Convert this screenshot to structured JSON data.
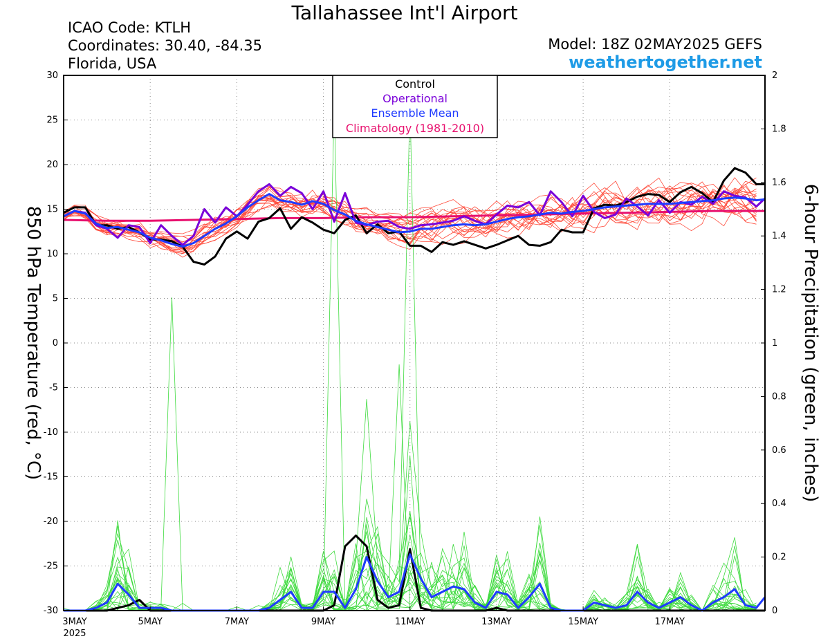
{
  "header": {
    "title": "Tallahassee Int'l Airport",
    "icao": "ICAO Code: KTLH",
    "coordinates": "Coordinates: 30.40, -84.35",
    "region": "Florida, USA",
    "model": "Model: 18Z 02MAY2025 GEFS",
    "site": "weathertogether.net"
  },
  "colors": {
    "members_temp": "#ff4a3a",
    "members_precip": "#3edb3e",
    "control": "#000000",
    "operational": "#7a00d9",
    "ensemble_mean": "#1f3bff",
    "climatology": "#e8106e",
    "site": "#1e9be6"
  },
  "chart_data": {
    "type": "line",
    "title": "Tallahassee Int'l Airport",
    "xlabel": "",
    "ylabel": "850 hPa Temperature (red, °C)",
    "y2label": "6-hour Precipitation (green, inches)",
    "x_unit": "days since 3MAY2025 00Z",
    "ylim": [
      -30,
      30
    ],
    "y2lim": [
      0,
      2
    ],
    "xlim": [
      0,
      16.2
    ],
    "yticks": [
      "30",
      "25",
      "20",
      "15",
      "10",
      "5",
      "0",
      "-5",
      "-10",
      "-15",
      "-20",
      "-25",
      "-30"
    ],
    "y2ticks": [
      "2",
      "1.8",
      "1.6",
      "1.4",
      "1.2",
      "1",
      "0.8",
      "0.6",
      "0.4",
      "0.2",
      "0"
    ],
    "xticks": [
      {
        "x": 0,
        "label": "3MAY",
        "sub": "2025"
      },
      {
        "x": 2,
        "label": "5MAY"
      },
      {
        "x": 4,
        "label": "7MAY"
      },
      {
        "x": 6,
        "label": "9MAY"
      },
      {
        "x": 8,
        "label": "11MAY"
      },
      {
        "x": 10,
        "label": "13MAY"
      },
      {
        "x": 12,
        "label": "15MAY"
      },
      {
        "x": 14,
        "label": "17MAY"
      }
    ],
    "grid": "dotted",
    "legend": [
      "Control",
      "Operational",
      "Ensemble Mean",
      "Climatology (1981-2010)"
    ],
    "legend_position": "top-center",
    "series": [
      {
        "name": "Control",
        "axis": "temperature",
        "points": [
          [
            0,
            14.6
          ],
          [
            0.25,
            15.2
          ],
          [
            0.5,
            15.2
          ],
          [
            0.75,
            13.2
          ],
          [
            1,
            13.2
          ],
          [
            1.25,
            12.8
          ],
          [
            1.5,
            13
          ],
          [
            1.75,
            12.4
          ],
          [
            2,
            11.6
          ],
          [
            2.25,
            11.6
          ],
          [
            2.5,
            11.4
          ],
          [
            2.75,
            10.8
          ],
          [
            3,
            9.1
          ],
          [
            3.25,
            8.8
          ],
          [
            3.5,
            9.7
          ],
          [
            3.75,
            11.7
          ],
          [
            4,
            12.5
          ],
          [
            4.25,
            11.7
          ],
          [
            4.5,
            13.6
          ],
          [
            4.75,
            14
          ],
          [
            5,
            15.1
          ],
          [
            5.25,
            12.8
          ],
          [
            5.5,
            14.1
          ],
          [
            5.75,
            13.5
          ],
          [
            6,
            12.7
          ],
          [
            6.25,
            12.3
          ],
          [
            6.5,
            13.8
          ],
          [
            6.75,
            14.3
          ],
          [
            7,
            12.3
          ],
          [
            7.25,
            13.3
          ],
          [
            7.5,
            12.3
          ],
          [
            7.75,
            12.5
          ],
          [
            8,
            10.9
          ],
          [
            8.25,
            10.9
          ],
          [
            8.5,
            10.2
          ],
          [
            8.75,
            11.3
          ],
          [
            9,
            11
          ],
          [
            9.25,
            11.4
          ],
          [
            9.5,
            11
          ],
          [
            9.75,
            10.6
          ],
          [
            10,
            11
          ],
          [
            10.25,
            11.5
          ],
          [
            10.5,
            12
          ],
          [
            10.75,
            11
          ],
          [
            11,
            10.9
          ],
          [
            11.25,
            11.3
          ],
          [
            11.5,
            12.7
          ],
          [
            11.75,
            12.4
          ],
          [
            12,
            12.4
          ],
          [
            12.25,
            15.1
          ],
          [
            12.5,
            15.5
          ],
          [
            12.75,
            15.4
          ],
          [
            13,
            15.8
          ],
          [
            13.25,
            16.4
          ],
          [
            13.5,
            16.7
          ],
          [
            13.75,
            16.6
          ],
          [
            14,
            15.8
          ],
          [
            14.25,
            16.9
          ],
          [
            14.5,
            17.5
          ],
          [
            14.75,
            16.8
          ],
          [
            15,
            15.8
          ],
          [
            15.25,
            18.2
          ],
          [
            15.5,
            19.6
          ],
          [
            15.75,
            19.1
          ],
          [
            16,
            17.8
          ],
          [
            16.2,
            17.8
          ]
        ]
      },
      {
        "name": "Operational",
        "axis": "temperature",
        "points": [
          [
            0,
            14.2
          ],
          [
            0.25,
            14.8
          ],
          [
            0.5,
            14.6
          ],
          [
            0.75,
            13.2
          ],
          [
            1,
            12.8
          ],
          [
            1.25,
            11.8
          ],
          [
            1.5,
            13.2
          ],
          [
            1.75,
            13
          ],
          [
            2,
            11.2
          ],
          [
            2.25,
            13.2
          ],
          [
            2.5,
            12
          ],
          [
            2.75,
            11
          ],
          [
            3,
            12
          ],
          [
            3.25,
            15
          ],
          [
            3.5,
            13.5
          ],
          [
            3.75,
            15.2
          ],
          [
            4,
            14.2
          ],
          [
            4.25,
            15.5
          ],
          [
            4.5,
            17
          ],
          [
            4.75,
            17.8
          ],
          [
            5,
            16.5
          ],
          [
            5.25,
            17.5
          ],
          [
            5.5,
            16.8
          ],
          [
            5.75,
            15
          ],
          [
            6,
            17
          ],
          [
            6.25,
            13.6
          ],
          [
            6.5,
            16.8
          ],
          [
            6.75,
            13.5
          ],
          [
            7,
            13.2
          ],
          [
            7.25,
            13.6
          ],
          [
            7.5,
            13.7
          ],
          [
            7.75,
            13
          ],
          [
            8,
            12.8
          ],
          [
            8.25,
            13.2
          ],
          [
            8.5,
            13.3
          ],
          [
            8.75,
            13.5
          ],
          [
            9,
            13.7
          ],
          [
            9.25,
            14.2
          ],
          [
            9.5,
            13.7
          ],
          [
            9.75,
            13.3
          ],
          [
            10,
            14.4
          ],
          [
            10.25,
            15.4
          ],
          [
            10.5,
            15.2
          ],
          [
            10.75,
            15.8
          ],
          [
            11,
            14.3
          ],
          [
            11.25,
            17
          ],
          [
            11.5,
            15.8
          ],
          [
            11.75,
            14.2
          ],
          [
            12,
            16.5
          ],
          [
            12.25,
            14.7
          ],
          [
            12.5,
            14
          ],
          [
            12.75,
            14.4
          ],
          [
            13,
            16.2
          ],
          [
            13.25,
            15.3
          ],
          [
            13.5,
            14.3
          ],
          [
            13.75,
            16
          ],
          [
            14,
            14.6
          ],
          [
            14.25,
            15.8
          ],
          [
            14.5,
            15.5
          ],
          [
            14.75,
            16.4
          ],
          [
            15,
            15.6
          ],
          [
            15.25,
            17
          ],
          [
            15.5,
            16.5
          ],
          [
            15.75,
            16.3
          ],
          [
            16,
            15.3
          ],
          [
            16.2,
            16.2
          ]
        ]
      },
      {
        "name": "Ensemble Mean",
        "axis": "temperature",
        "points": [
          [
            0,
            14.2
          ],
          [
            0.25,
            14.8
          ],
          [
            0.5,
            14.5
          ],
          [
            0.75,
            13.4
          ],
          [
            1,
            12.9
          ],
          [
            1.25,
            13
          ],
          [
            1.5,
            12.7
          ],
          [
            1.75,
            12.4
          ],
          [
            2,
            11.8
          ],
          [
            2.25,
            11.5
          ],
          [
            2.5,
            11.1
          ],
          [
            2.75,
            10.8
          ],
          [
            3,
            11.2
          ],
          [
            3.25,
            12
          ],
          [
            3.5,
            12.8
          ],
          [
            3.75,
            13.4
          ],
          [
            4,
            14.2
          ],
          [
            4.25,
            15.2
          ],
          [
            4.5,
            16
          ],
          [
            4.75,
            16.7
          ],
          [
            5,
            16
          ],
          [
            5.25,
            15.8
          ],
          [
            5.5,
            15.5
          ],
          [
            5.75,
            15.9
          ],
          [
            6,
            15.6
          ],
          [
            6.25,
            14.9
          ],
          [
            6.5,
            14.4
          ],
          [
            6.75,
            13.7
          ],
          [
            7,
            13.3
          ],
          [
            7.25,
            13
          ],
          [
            7.5,
            12.7
          ],
          [
            7.75,
            12.4
          ],
          [
            8,
            12.5
          ],
          [
            8.25,
            12.8
          ],
          [
            8.5,
            12.8
          ],
          [
            8.75,
            13
          ],
          [
            9,
            13.2
          ],
          [
            9.25,
            13.3
          ],
          [
            9.5,
            13.2
          ],
          [
            9.75,
            13.3
          ],
          [
            10,
            13.6
          ],
          [
            10.25,
            13.9
          ],
          [
            10.5,
            14.1
          ],
          [
            10.75,
            14.2
          ],
          [
            11,
            14.4
          ],
          [
            11.25,
            14.6
          ],
          [
            11.5,
            14.5
          ],
          [
            11.75,
            14.7
          ],
          [
            12,
            14.8
          ],
          [
            12.25,
            15
          ],
          [
            12.5,
            15.2
          ],
          [
            12.75,
            15.3
          ],
          [
            13,
            15.4
          ],
          [
            13.25,
            15.5
          ],
          [
            13.5,
            15.6
          ],
          [
            13.75,
            15.6
          ],
          [
            14,
            15.6
          ],
          [
            14.25,
            15.7
          ],
          [
            14.5,
            15.8
          ],
          [
            14.75,
            15.9
          ],
          [
            15,
            16
          ],
          [
            15.25,
            16.2
          ],
          [
            15.5,
            16.3
          ],
          [
            15.75,
            16.2
          ],
          [
            16,
            16
          ],
          [
            16.2,
            16.1
          ]
        ]
      },
      {
        "name": "Climatology (1981-2010)",
        "axis": "temperature",
        "points": [
          [
            0,
            13.8
          ],
          [
            1,
            13.7
          ],
          [
            2,
            13.7
          ],
          [
            3,
            13.8
          ],
          [
            4,
            13.9
          ],
          [
            5,
            14
          ],
          [
            6,
            14
          ],
          [
            7,
            14.1
          ],
          [
            8,
            14.1
          ],
          [
            9,
            14.2
          ],
          [
            10,
            14.3
          ],
          [
            11,
            14.4
          ],
          [
            12,
            14.5
          ],
          [
            13,
            14.6
          ],
          [
            14,
            14.7
          ],
          [
            15,
            14.8
          ],
          [
            16,
            14.8
          ],
          [
            16.2,
            14.8
          ]
        ]
      },
      {
        "name": "Control",
        "axis": "precipitation",
        "points": [
          [
            0,
            0
          ],
          [
            1,
            0
          ],
          [
            1.5,
            0.02
          ],
          [
            1.75,
            0.04
          ],
          [
            2,
            0
          ],
          [
            6,
            0
          ],
          [
            6.25,
            0.02
          ],
          [
            6.5,
            0.24
          ],
          [
            6.75,
            0.28
          ],
          [
            7,
            0.24
          ],
          [
            7.25,
            0.04
          ],
          [
            7.5,
            0.01
          ],
          [
            7.75,
            0.02
          ],
          [
            8,
            0.23
          ],
          [
            8.25,
            0.01
          ],
          [
            8.5,
            0
          ],
          [
            9.75,
            0
          ],
          [
            10,
            0.01
          ],
          [
            10.25,
            0
          ],
          [
            16.2,
            0
          ]
        ]
      },
      {
        "name": "Ensemble Mean",
        "axis": "precipitation",
        "points": [
          [
            0,
            0
          ],
          [
            0.5,
            0
          ],
          [
            0.75,
            0.01
          ],
          [
            1,
            0.03
          ],
          [
            1.25,
            0.1
          ],
          [
            1.5,
            0.06
          ],
          [
            1.75,
            0.01
          ],
          [
            2,
            0.01
          ],
          [
            2.25,
            0.01
          ],
          [
            2.5,
            0
          ],
          [
            4.5,
            0
          ],
          [
            4.75,
            0.01
          ],
          [
            5,
            0.04
          ],
          [
            5.25,
            0.07
          ],
          [
            5.5,
            0.01
          ],
          [
            5.75,
            0.01
          ],
          [
            6,
            0.07
          ],
          [
            6.25,
            0.07
          ],
          [
            6.5,
            0.01
          ],
          [
            6.75,
            0.08
          ],
          [
            7,
            0.2
          ],
          [
            7.25,
            0.11
          ],
          [
            7.5,
            0.05
          ],
          [
            7.75,
            0.07
          ],
          [
            8,
            0.21
          ],
          [
            8.25,
            0.12
          ],
          [
            8.5,
            0.05
          ],
          [
            8.75,
            0.07
          ],
          [
            9,
            0.09
          ],
          [
            9.25,
            0.08
          ],
          [
            9.5,
            0.03
          ],
          [
            9.75,
            0.01
          ],
          [
            10,
            0.07
          ],
          [
            10.25,
            0.06
          ],
          [
            10.5,
            0.01
          ],
          [
            10.75,
            0.05
          ],
          [
            11,
            0.1
          ],
          [
            11.25,
            0.01
          ],
          [
            11.5,
            0
          ],
          [
            12,
            0
          ],
          [
            12.25,
            0.03
          ],
          [
            12.5,
            0.02
          ],
          [
            12.75,
            0.01
          ],
          [
            13,
            0.02
          ],
          [
            13.25,
            0.07
          ],
          [
            13.5,
            0.03
          ],
          [
            13.75,
            0.01
          ],
          [
            14,
            0.03
          ],
          [
            14.25,
            0.05
          ],
          [
            14.5,
            0.02
          ],
          [
            14.75,
            0
          ],
          [
            15,
            0.03
          ],
          [
            15.25,
            0.05
          ],
          [
            15.5,
            0.08
          ],
          [
            15.75,
            0.02
          ],
          [
            16,
            0.01
          ],
          [
            16.2,
            0.05
          ]
        ]
      }
    ]
  }
}
